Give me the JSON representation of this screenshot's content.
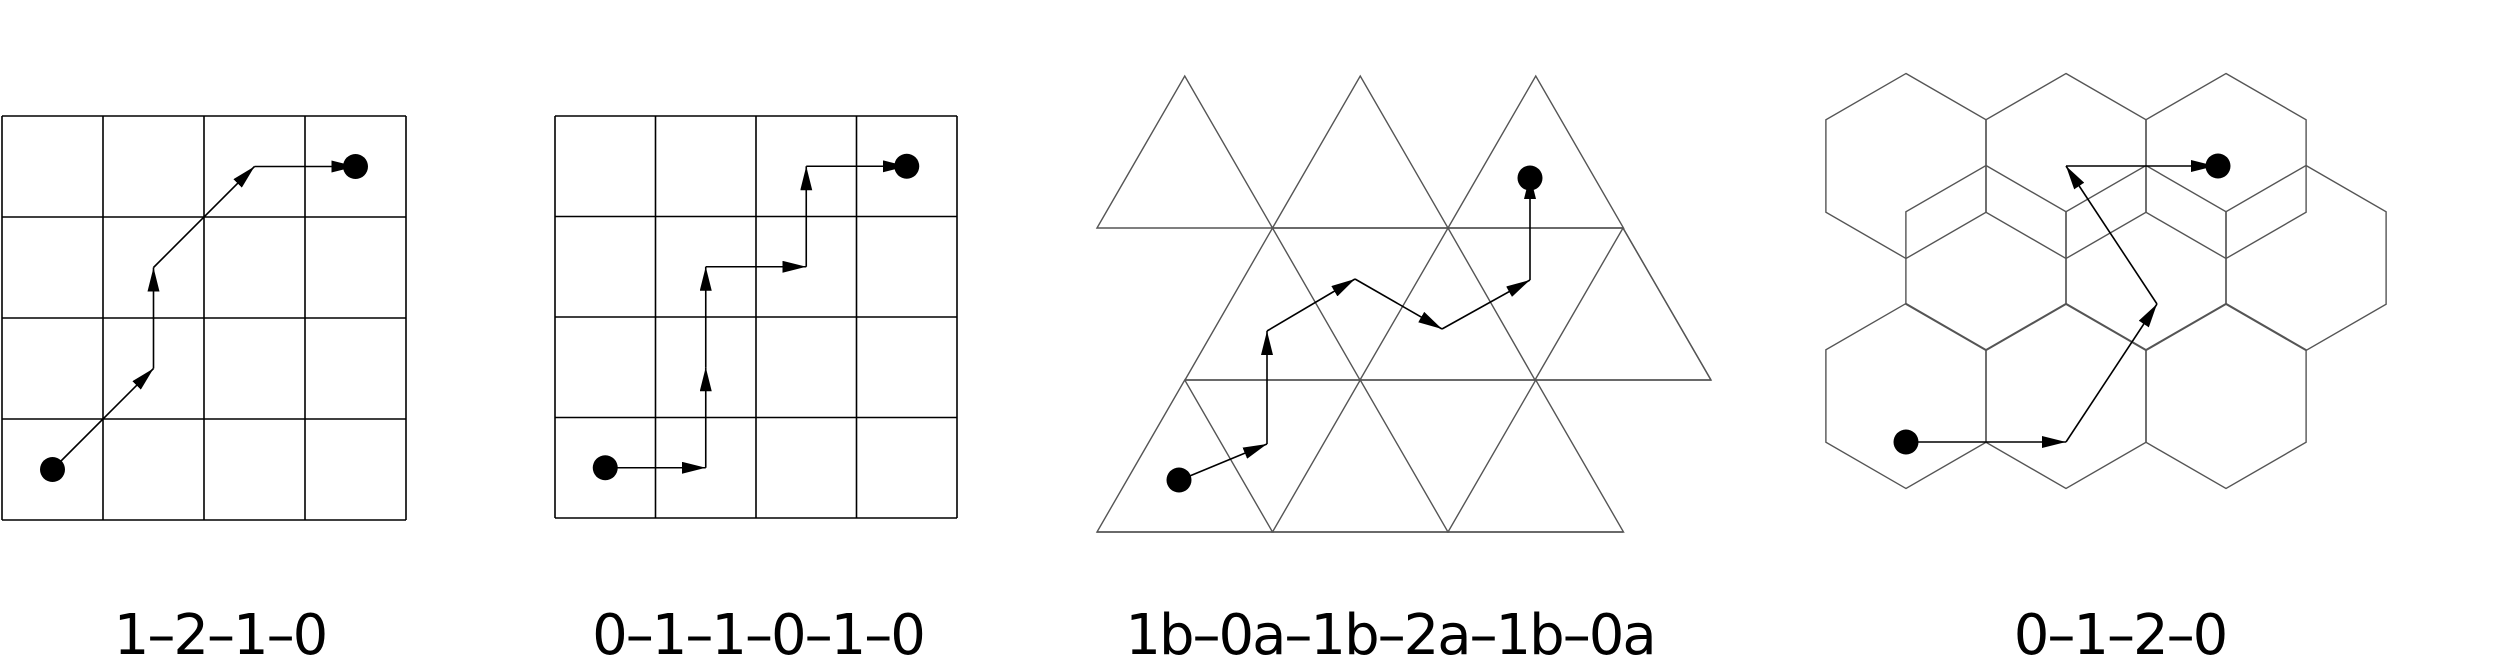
{
  "colors": {
    "line": "#000000",
    "grid": "#000000",
    "tri": "#555555",
    "hex": "#555555",
    "dot": "#000000",
    "background": "#ffffff"
  },
  "panels": [
    {
      "id": "square-grid-diagonal",
      "grid": "square",
      "caption": "1–2–1–0"
    },
    {
      "id": "square-grid-orthogonal",
      "grid": "square",
      "caption": "0–1–1–0–1–0"
    },
    {
      "id": "triangular-grid",
      "grid": "triangle",
      "caption": "1b–0a–1b–2a–1b–0a"
    },
    {
      "id": "hexagonal-grid",
      "grid": "hexagon",
      "caption": "0–1–2–0"
    }
  ]
}
